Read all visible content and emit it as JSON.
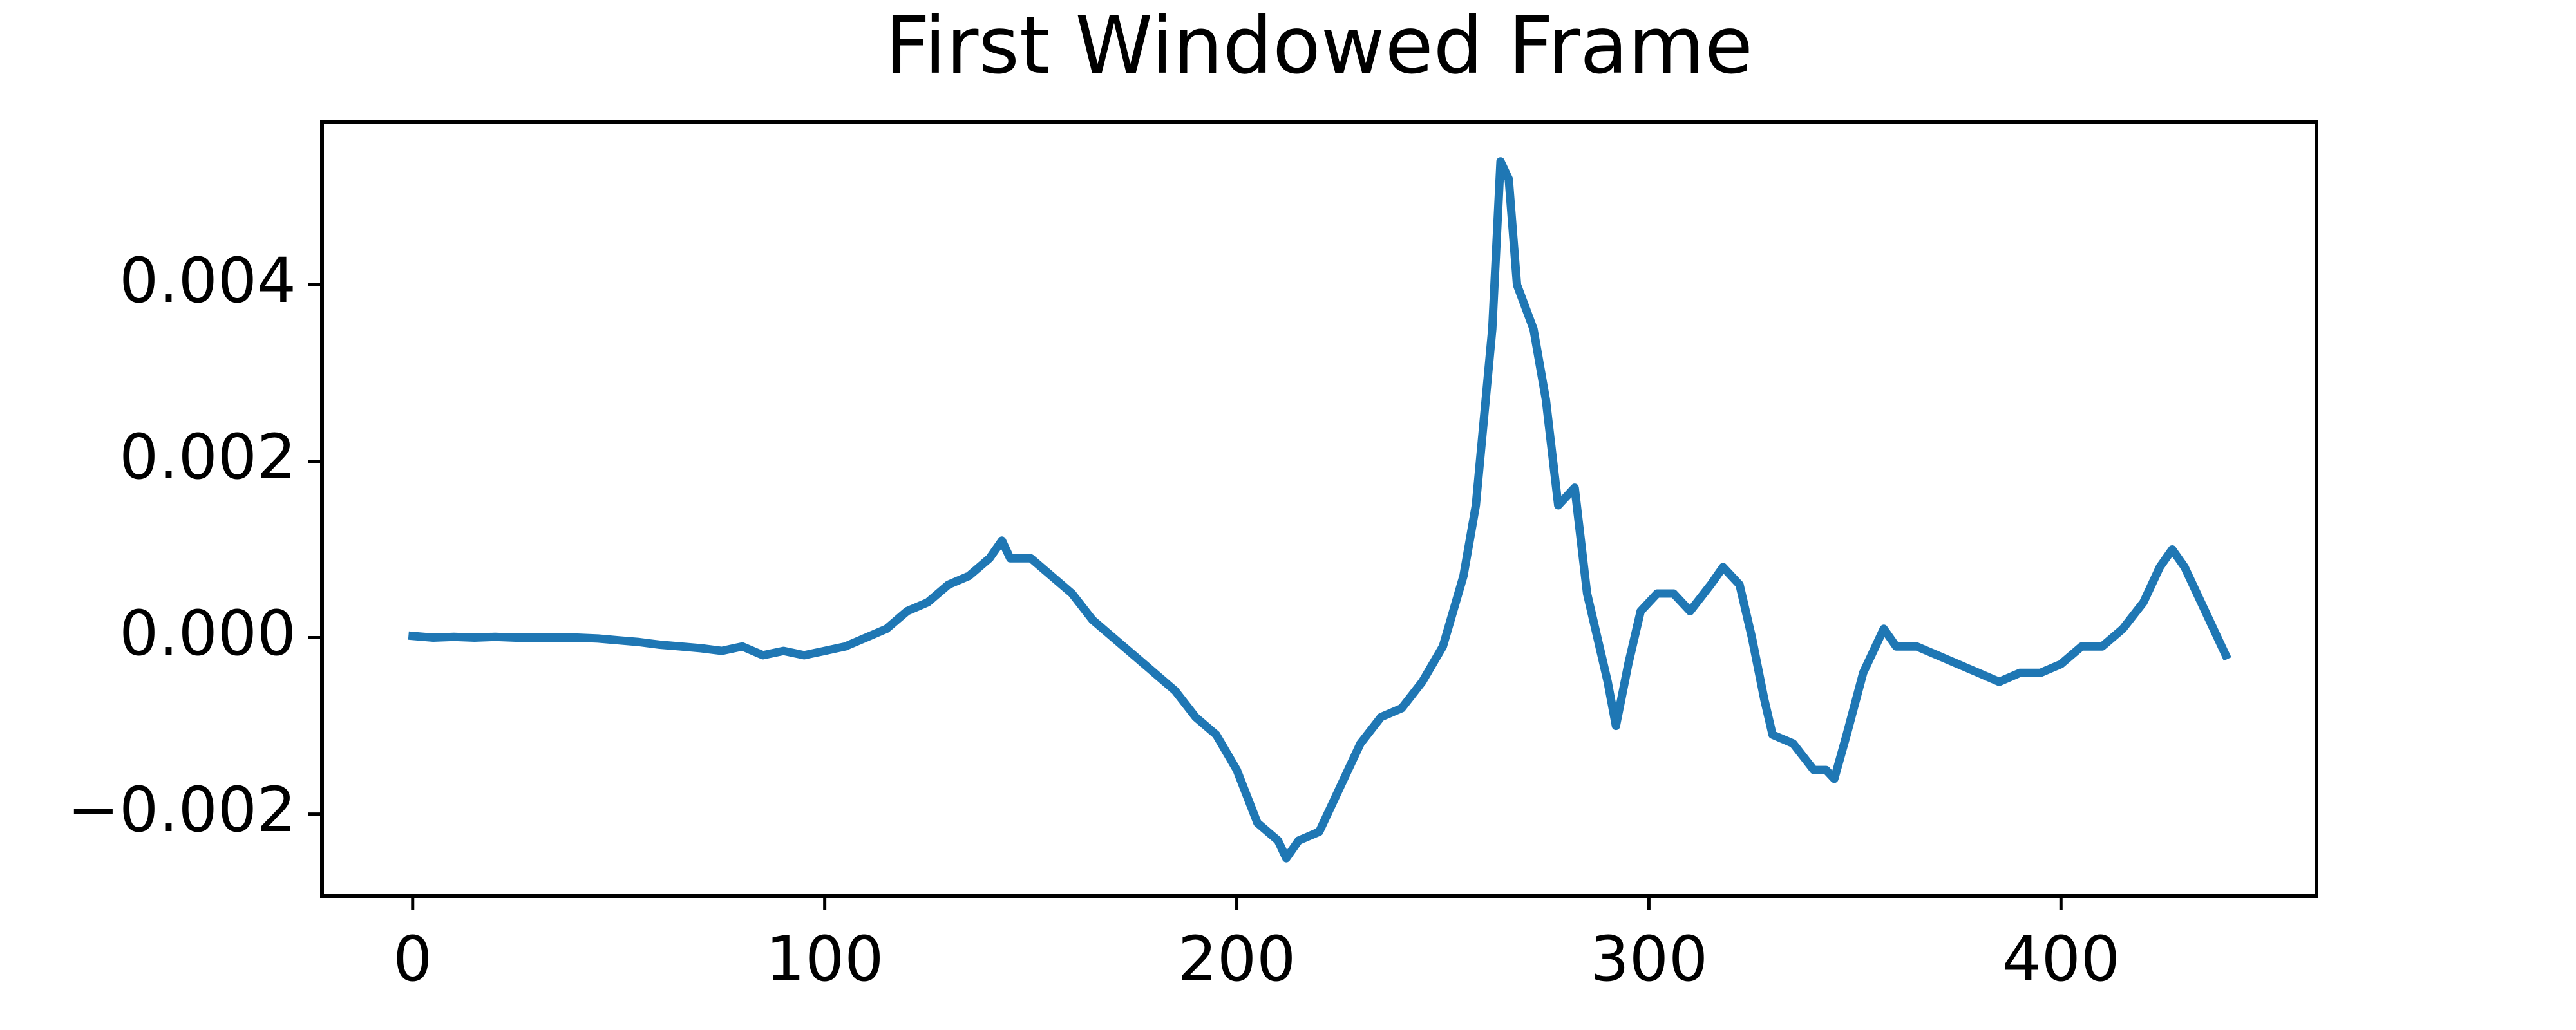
{
  "chart_data": {
    "type": "line",
    "title": "First Windowed Frame",
    "color": "#1f77b4",
    "x": [
      0,
      5,
      10,
      15,
      20,
      25,
      30,
      35,
      40,
      45,
      50,
      55,
      60,
      65,
      70,
      75,
      80,
      85,
      90,
      95,
      100,
      105,
      110,
      115,
      120,
      125,
      130,
      135,
      140,
      143,
      145,
      150,
      155,
      160,
      165,
      170,
      175,
      180,
      185,
      190,
      195,
      200,
      205,
      210,
      212,
      215,
      220,
      225,
      230,
      235,
      240,
      245,
      250,
      255,
      258,
      262,
      264,
      266,
      268,
      272,
      275,
      278,
      282,
      285,
      288,
      290,
      292,
      295,
      298,
      302,
      306,
      310,
      315,
      318,
      322,
      325,
      328,
      330,
      335,
      340,
      343,
      345,
      348,
      352,
      357,
      360,
      365,
      370,
      375,
      380,
      385,
      390,
      395,
      400,
      405,
      410,
      415,
      420,
      424,
      427,
      430,
      435,
      440
    ],
    "values": [
      2e-05,
      0.0,
      1e-05,
      0.0,
      1e-05,
      0.0,
      0.0,
      0.0,
      0.0,
      -1e-05,
      -3e-05,
      -5e-05,
      -8e-05,
      -0.0001,
      -0.00012,
      -0.00015,
      -0.0001,
      -0.0002,
      -0.00015,
      -0.0002,
      -0.00015,
      -0.0001,
      0.0,
      0.0001,
      0.0003,
      0.0004,
      0.0006,
      0.0007,
      0.0009,
      0.0011,
      0.0009,
      0.0009,
      0.0007,
      0.0005,
      0.0002,
      0.0,
      -0.0002,
      -0.0004,
      -0.0006,
      -0.0009,
      -0.0011,
      -0.0015,
      -0.0021,
      -0.0023,
      -0.0025,
      -0.0023,
      -0.0022,
      -0.0017,
      -0.0012,
      -0.0009,
      -0.0008,
      -0.0005,
      -0.0001,
      0.0007,
      0.0015,
      0.0035,
      0.0054,
      0.0052,
      0.004,
      0.0035,
      0.0027,
      0.0015,
      0.0017,
      0.0005,
      -0.0001,
      -0.0005,
      -0.001,
      -0.0003,
      0.0003,
      0.0005,
      0.0005,
      0.0003,
      0.0006,
      0.0008,
      0.0006,
      0.0,
      -0.0007,
      -0.0011,
      -0.0012,
      -0.0015,
      -0.0015,
      -0.0016,
      -0.0011,
      -0.0004,
      0.0001,
      -0.0001,
      -0.0001,
      -0.0002,
      -0.0003,
      -0.0004,
      -0.0005,
      -0.0004,
      -0.0004,
      -0.0003,
      -0.0001,
      -0.0001,
      0.0001,
      0.0004,
      0.0008,
      0.001,
      0.0008,
      0.0003,
      -0.0002
    ],
    "xlim": [
      -22,
      462
    ],
    "xticks": [
      0,
      100,
      200,
      300,
      400
    ],
    "ylim": [
      -0.00293,
      0.00585
    ],
    "yticks": [
      {
        "value": -0.002,
        "label": "−0.002"
      },
      {
        "value": 0,
        "label": "0.000"
      },
      {
        "value": 0.002,
        "label": "0.002"
      },
      {
        "value": 0.004,
        "label": "0.004"
      }
    ]
  }
}
